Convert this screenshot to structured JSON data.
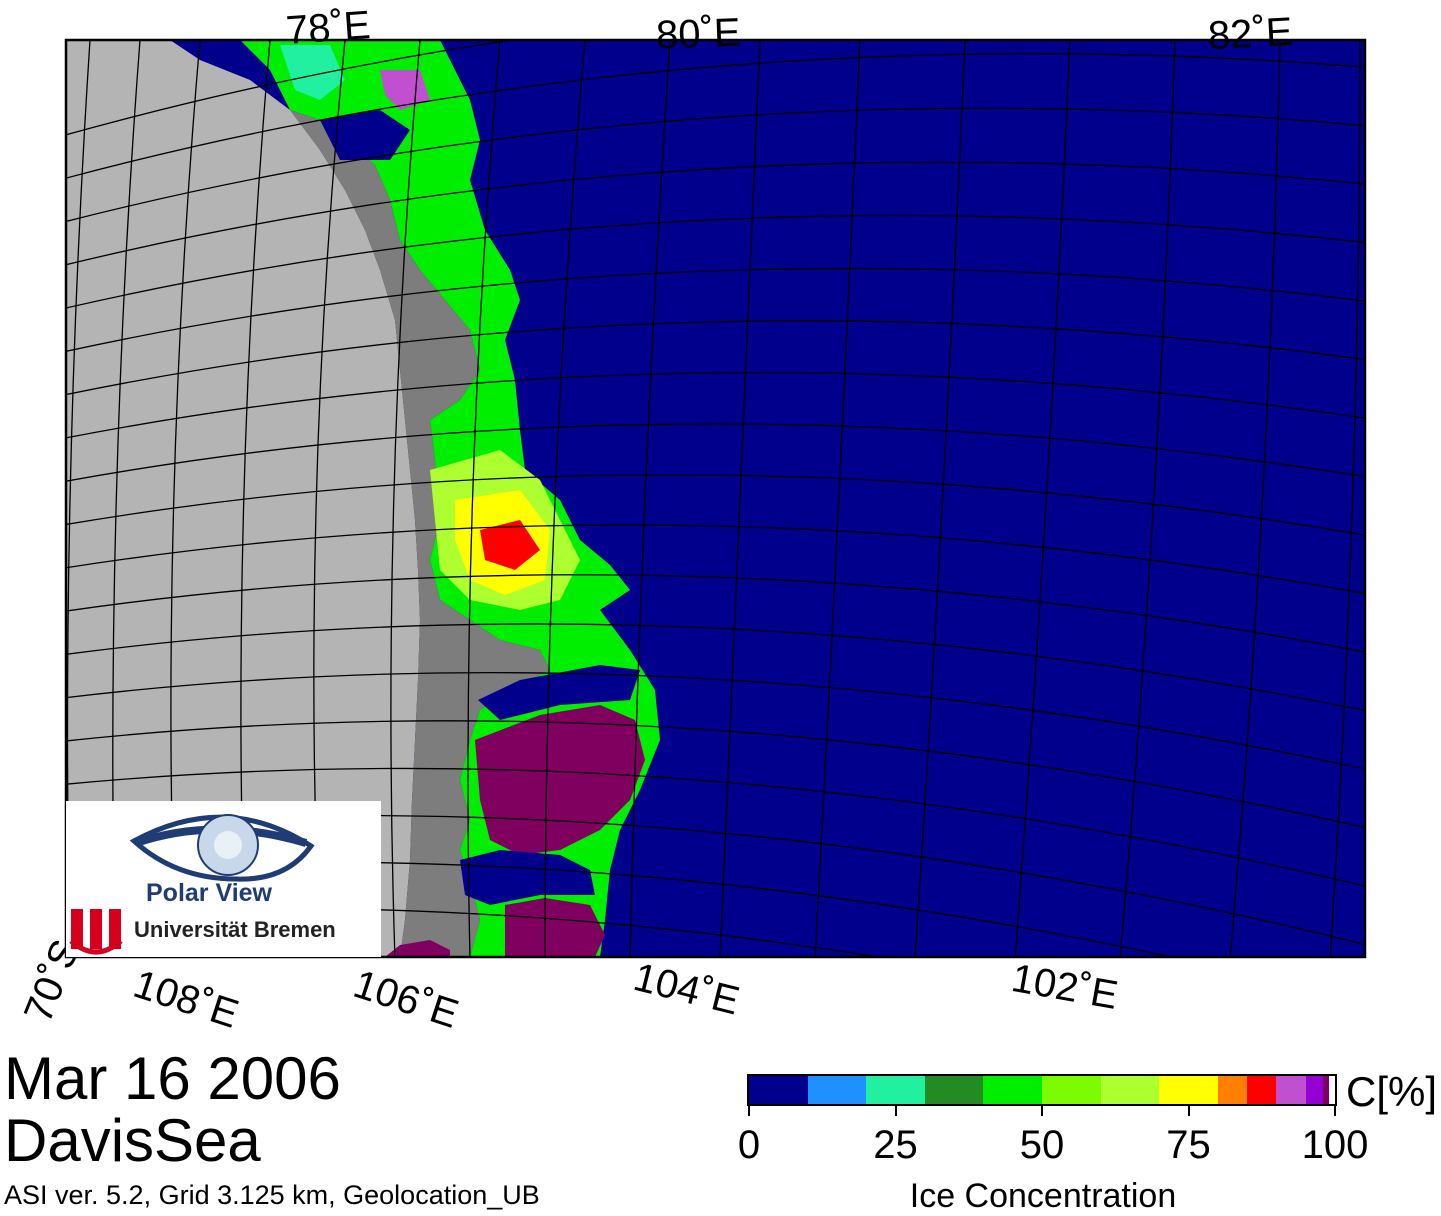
{
  "map": {
    "lon_labels_top": [
      "78˚E",
      "80˚E",
      "82˚E"
    ],
    "lon_labels_bottom": [
      "108˚E",
      "106˚E",
      "104˚E",
      "102˚E"
    ],
    "lat_label": "70˚S",
    "colors": {
      "ocean": "#00008c",
      "land": "#b4b4b4",
      "ice_shelf": "#7d7d7d",
      "grid": "#000000"
    }
  },
  "logo": {
    "title": "Polar View",
    "subtitle": "Universität Bremen"
  },
  "header": {
    "date": "Mar 16 2006",
    "region": "DavisSea",
    "footnote": "ASI ver. 5.2,  Grid 3.125 km, Geolocation_UB"
  },
  "colorbar": {
    "unit": "C[%]",
    "title": "Ice Concentration",
    "tick_labels": [
      "0",
      "25",
      "50",
      "75",
      "100"
    ],
    "min": 0,
    "max": 100,
    "bins": [
      {
        "from": 0,
        "to": 10,
        "color": "#00008c"
      },
      {
        "from": 10,
        "to": 20,
        "color": "#1e90ff"
      },
      {
        "from": 20,
        "to": 30,
        "color": "#20f0a0"
      },
      {
        "from": 30,
        "to": 40,
        "color": "#228b22"
      },
      {
        "from": 40,
        "to": 50,
        "color": "#00ee00"
      },
      {
        "from": 50,
        "to": 60,
        "color": "#7cfc00"
      },
      {
        "from": 60,
        "to": 70,
        "color": "#adff2f"
      },
      {
        "from": 70,
        "to": 80,
        "color": "#ffff00"
      },
      {
        "from": 80,
        "to": 85,
        "color": "#ff8000"
      },
      {
        "from": 85,
        "to": 90,
        "color": "#ff0000"
      },
      {
        "from": 90,
        "to": 95,
        "color": "#c050d0"
      },
      {
        "from": 95,
        "to": 98,
        "color": "#9400d3"
      },
      {
        "from": 98,
        "to": 99,
        "color": "#800060"
      },
      {
        "from": 99,
        "to": 100,
        "color": "#ffffff"
      }
    ]
  }
}
